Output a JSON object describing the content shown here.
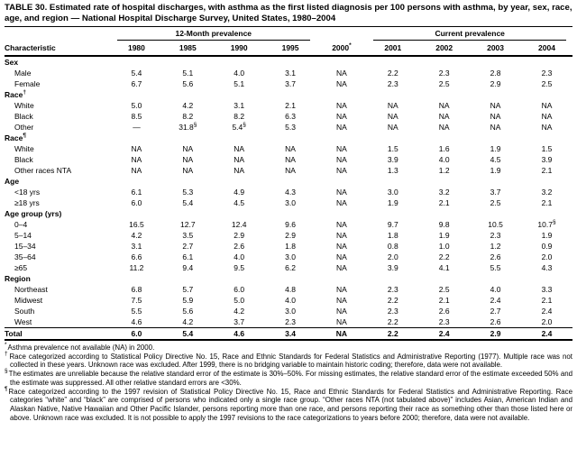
{
  "title": "TABLE 30. Estimated rate of hospital discharges, with asthma as the first listed diagnosis per 100 persons with asthma, by year, sex, race, age, and region — National Hospital Discharge Survey, United States, 1980–2004",
  "table": {
    "characteristic_header": "Characteristic",
    "spanners": {
      "left": "12-Month prevalence",
      "right": "Current prevalence"
    },
    "years": [
      "1980",
      "1985",
      "1990",
      "1995",
      "2000*",
      "2001",
      "2002",
      "2003",
      "2004"
    ],
    "rows": [
      {
        "label": "Sex",
        "type": "group",
        "values": [
          "",
          "",
          "",
          "",
          "",
          "",
          "",
          "",
          ""
        ]
      },
      {
        "label": "Male",
        "type": "data",
        "values": [
          "5.4",
          "5.1",
          "4.0",
          "3.1",
          "NA",
          "2.2",
          "2.3",
          "2.8",
          "2.3"
        ]
      },
      {
        "label": "Female",
        "type": "data",
        "values": [
          "6.7",
          "5.6",
          "5.1",
          "3.7",
          "NA",
          "2.3",
          "2.5",
          "2.9",
          "2.5"
        ]
      },
      {
        "label": "Race†",
        "type": "group",
        "values": [
          "",
          "",
          "",
          "",
          "",
          "",
          "",
          "",
          ""
        ]
      },
      {
        "label": "White",
        "type": "data",
        "values": [
          "5.0",
          "4.2",
          "3.1",
          "2.1",
          "NA",
          "NA",
          "NA",
          "NA",
          "NA"
        ]
      },
      {
        "label": "Black",
        "type": "data",
        "values": [
          "8.5",
          "8.2",
          "8.2",
          "6.3",
          "NA",
          "NA",
          "NA",
          "NA",
          "NA"
        ]
      },
      {
        "label": "Other",
        "type": "data",
        "values": [
          "—",
          "31.8§",
          "5.4§",
          "5.3",
          "NA",
          "NA",
          "NA",
          "NA",
          "NA"
        ]
      },
      {
        "label": "Race¶",
        "type": "group",
        "values": [
          "",
          "",
          "",
          "",
          "",
          "",
          "",
          "",
          ""
        ]
      },
      {
        "label": "White",
        "type": "data",
        "values": [
          "NA",
          "NA",
          "NA",
          "NA",
          "NA",
          "1.5",
          "1.6",
          "1.9",
          "1.5"
        ]
      },
      {
        "label": "Black",
        "type": "data",
        "values": [
          "NA",
          "NA",
          "NA",
          "NA",
          "NA",
          "3.9",
          "4.0",
          "4.5",
          "3.9"
        ]
      },
      {
        "label": "Other races NTA",
        "type": "data",
        "values": [
          "NA",
          "NA",
          "NA",
          "NA",
          "NA",
          "1.3",
          "1.2",
          "1.9",
          "2.1"
        ]
      },
      {
        "label": "Age",
        "type": "group",
        "values": [
          "",
          "",
          "",
          "",
          "",
          "",
          "",
          "",
          ""
        ]
      },
      {
        "label": "<18 yrs",
        "type": "data",
        "values": [
          "6.1",
          "5.3",
          "4.9",
          "4.3",
          "NA",
          "3.0",
          "3.2",
          "3.7",
          "3.2"
        ]
      },
      {
        "label": "≥18 yrs",
        "type": "data",
        "values": [
          "6.0",
          "5.4",
          "4.5",
          "3.0",
          "NA",
          "1.9",
          "2.1",
          "2.5",
          "2.1"
        ]
      },
      {
        "label": "Age group (yrs)",
        "type": "group",
        "values": [
          "",
          "",
          "",
          "",
          "",
          "",
          "",
          "",
          ""
        ]
      },
      {
        "label": "0–4",
        "type": "data",
        "values": [
          "16.5",
          "12.7",
          "12.4",
          "9.6",
          "NA",
          "9.7",
          "9.8",
          "10.5",
          "10.7§"
        ]
      },
      {
        "label": "5–14",
        "type": "data",
        "values": [
          "4.2",
          "3.5",
          "2.9",
          "2.9",
          "NA",
          "1.8",
          "1.9",
          "2.3",
          "1.9"
        ]
      },
      {
        "label": "15–34",
        "type": "data",
        "values": [
          "3.1",
          "2.7",
          "2.6",
          "1.8",
          "NA",
          "0.8",
          "1.0",
          "1.2",
          "0.9"
        ]
      },
      {
        "label": "35–64",
        "type": "data",
        "values": [
          "6.6",
          "6.1",
          "4.0",
          "3.0",
          "NA",
          "2.0",
          "2.2",
          "2.6",
          "2.0"
        ]
      },
      {
        "label": "≥65",
        "type": "data",
        "values": [
          "11.2",
          "9.4",
          "9.5",
          "6.2",
          "NA",
          "3.9",
          "4.1",
          "5.5",
          "4.3"
        ]
      },
      {
        "label": "Region",
        "type": "group",
        "values": [
          "",
          "",
          "",
          "",
          "",
          "",
          "",
          "",
          ""
        ]
      },
      {
        "label": "Northeast",
        "type": "data",
        "values": [
          "6.8",
          "5.7",
          "6.0",
          "4.8",
          "NA",
          "2.3",
          "2.5",
          "4.0",
          "3.3"
        ]
      },
      {
        "label": "Midwest",
        "type": "data",
        "values": [
          "7.5",
          "5.9",
          "5.0",
          "4.0",
          "NA",
          "2.2",
          "2.1",
          "2.4",
          "2.1"
        ]
      },
      {
        "label": "South",
        "type": "data",
        "values": [
          "5.5",
          "5.6",
          "4.2",
          "3.0",
          "NA",
          "2.3",
          "2.6",
          "2.7",
          "2.4"
        ]
      },
      {
        "label": "West",
        "type": "data",
        "values": [
          "4.6",
          "4.2",
          "3.7",
          "2.3",
          "NA",
          "2.2",
          "2.3",
          "2.6",
          "2.0"
        ]
      },
      {
        "label": "Total",
        "type": "total",
        "values": [
          "6.0",
          "5.4",
          "4.6",
          "3.4",
          "NA",
          "2.2",
          "2.4",
          "2.9",
          "2.4"
        ]
      }
    ]
  },
  "footnotes": [
    {
      "marker": "*",
      "text": "Asthma prevalence not available (NA) in 2000."
    },
    {
      "marker": "†",
      "text": "Race categorized according to Statistical Policy Directive No. 15, Race and Ethnic Standards for Federal Statistics and Administrative Reporting (1977). Multiple race was not collected in these years. Unknown race was excluded. After 1999, there is no bridging variable to maintain historic coding; therefore, data were not available."
    },
    {
      "marker": "§",
      "text": "The estimates are unreliable because the relative standard error of the estimate is 30%–50%. For missing estimates, the relative standard error of the estimate exceeded 50% and the estimate was suppressed. All other relative standard errors are <30%."
    },
    {
      "marker": "¶",
      "text": "Race categorized according to the 1997 revision of Statistical Policy Directive No. 15, Race and Ethnic Standards for Federal Statistics and Administrative Reporting. Race categories “white” and “black” are comprised of persons who indicated only a single race group. “Other races NTA (not tabulated above)” includes Asian, American Indian and Alaskan Native, Native Hawaiian and Other Pacific Islander, persons reporting more than one race, and persons reporting their race as something other than those listed here or above. Unknown race was excluded. It is not possible to apply the 1997 revisions to the race categorizations to years before 2000; therefore, data were not available."
    }
  ]
}
